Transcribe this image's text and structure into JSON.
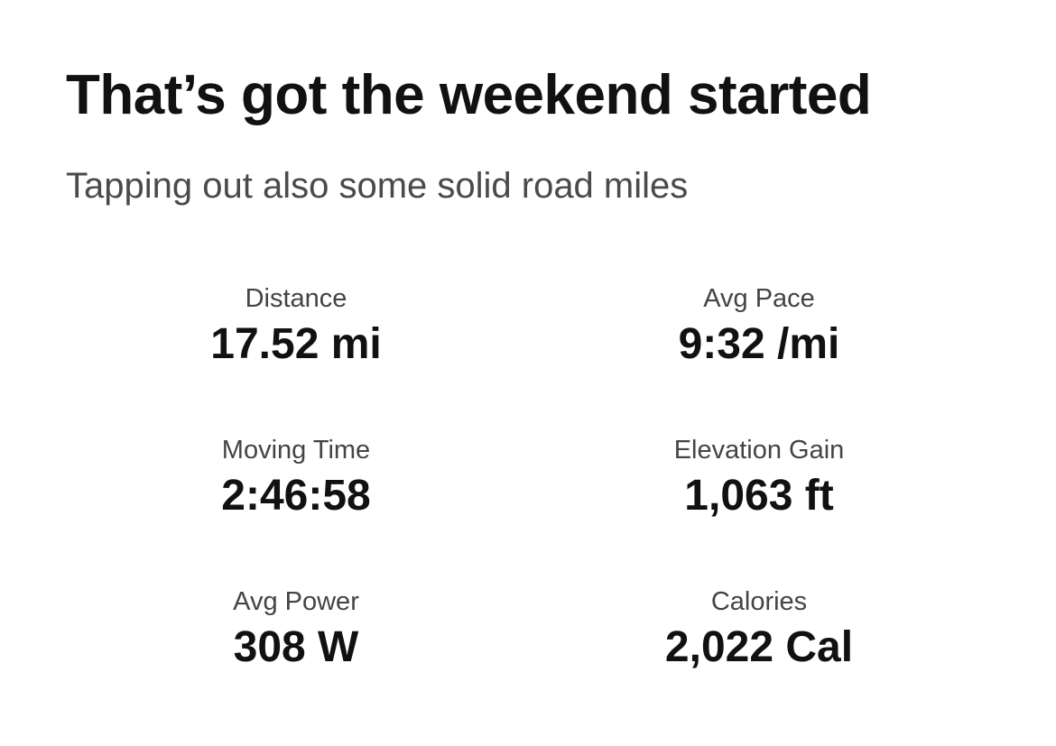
{
  "header": {
    "title": "That’s got the weekend started",
    "subtitle": "Tapping out also some solid road miles"
  },
  "stats": [
    {
      "label": "Distance",
      "value": "17.52 mi"
    },
    {
      "label": "Avg Pace",
      "value": "9:32 /mi"
    },
    {
      "label": "Moving Time",
      "value": "2:46:58"
    },
    {
      "label": "Elevation Gain",
      "value": "1,063 ft"
    },
    {
      "label": "Avg Power",
      "value": "308 W"
    },
    {
      "label": "Calories",
      "value": "2,022 Cal"
    }
  ]
}
